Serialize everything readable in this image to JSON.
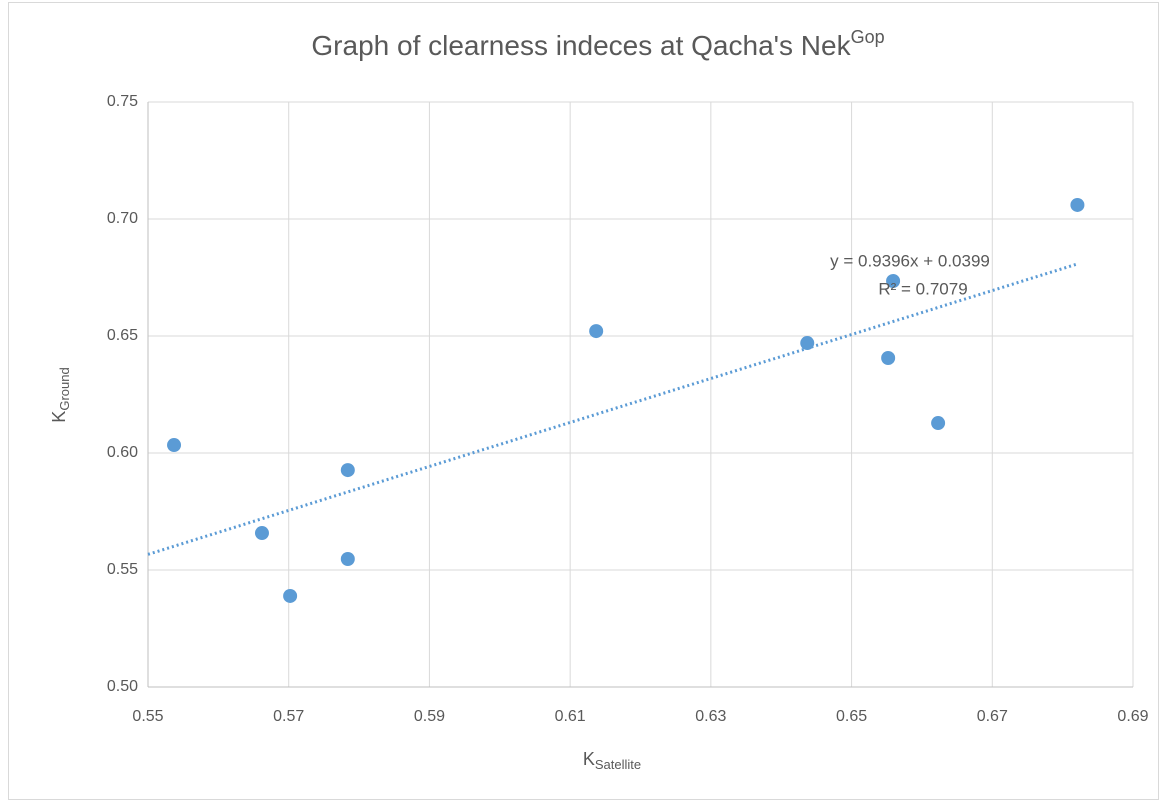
{
  "chart_data": {
    "type": "scatter",
    "title": "Graph of clearness indeces at Qacha's Nek",
    "title_superscript": "Gop",
    "x_label": "K",
    "x_label_subscript": "Satellite",
    "y_label": "K",
    "y_label_subscript": "Ground",
    "series": [
      {
        "color": "#5b9bd5",
        "x": [
          0.5537,
          0.5662,
          0.5702,
          0.5784,
          0.5784,
          0.6137,
          0.6437,
          0.6552,
          0.6559,
          0.6623,
          0.6821
        ],
        "values": [
          0.6034,
          0.5658,
          0.5389,
          0.5927,
          0.5547,
          0.6521,
          0.647,
          0.6406,
          0.6735,
          0.6128,
          0.706
        ]
      }
    ],
    "trendline": {
      "slope": 0.9396,
      "intercept": 0.0399,
      "color": "#5b9bd5",
      "equation": "y = 0.9396x + 0.0399",
      "r2": "R² = 0.7079"
    },
    "xlim": [
      0.55,
      0.69
    ],
    "xticks": [
      0.55,
      0.57,
      0.59,
      0.61,
      0.63,
      0.65,
      0.67,
      0.69
    ],
    "ylim": [
      0.5,
      0.75
    ],
    "yticks": [
      {
        "value": 0.5,
        "label": "0.50"
      },
      0.55,
      {
        "value": 0.6,
        "label": "0.60"
      },
      0.65,
      {
        "value": 0.7,
        "label": "0.70"
      },
      0.75
    ],
    "grid": true
  }
}
